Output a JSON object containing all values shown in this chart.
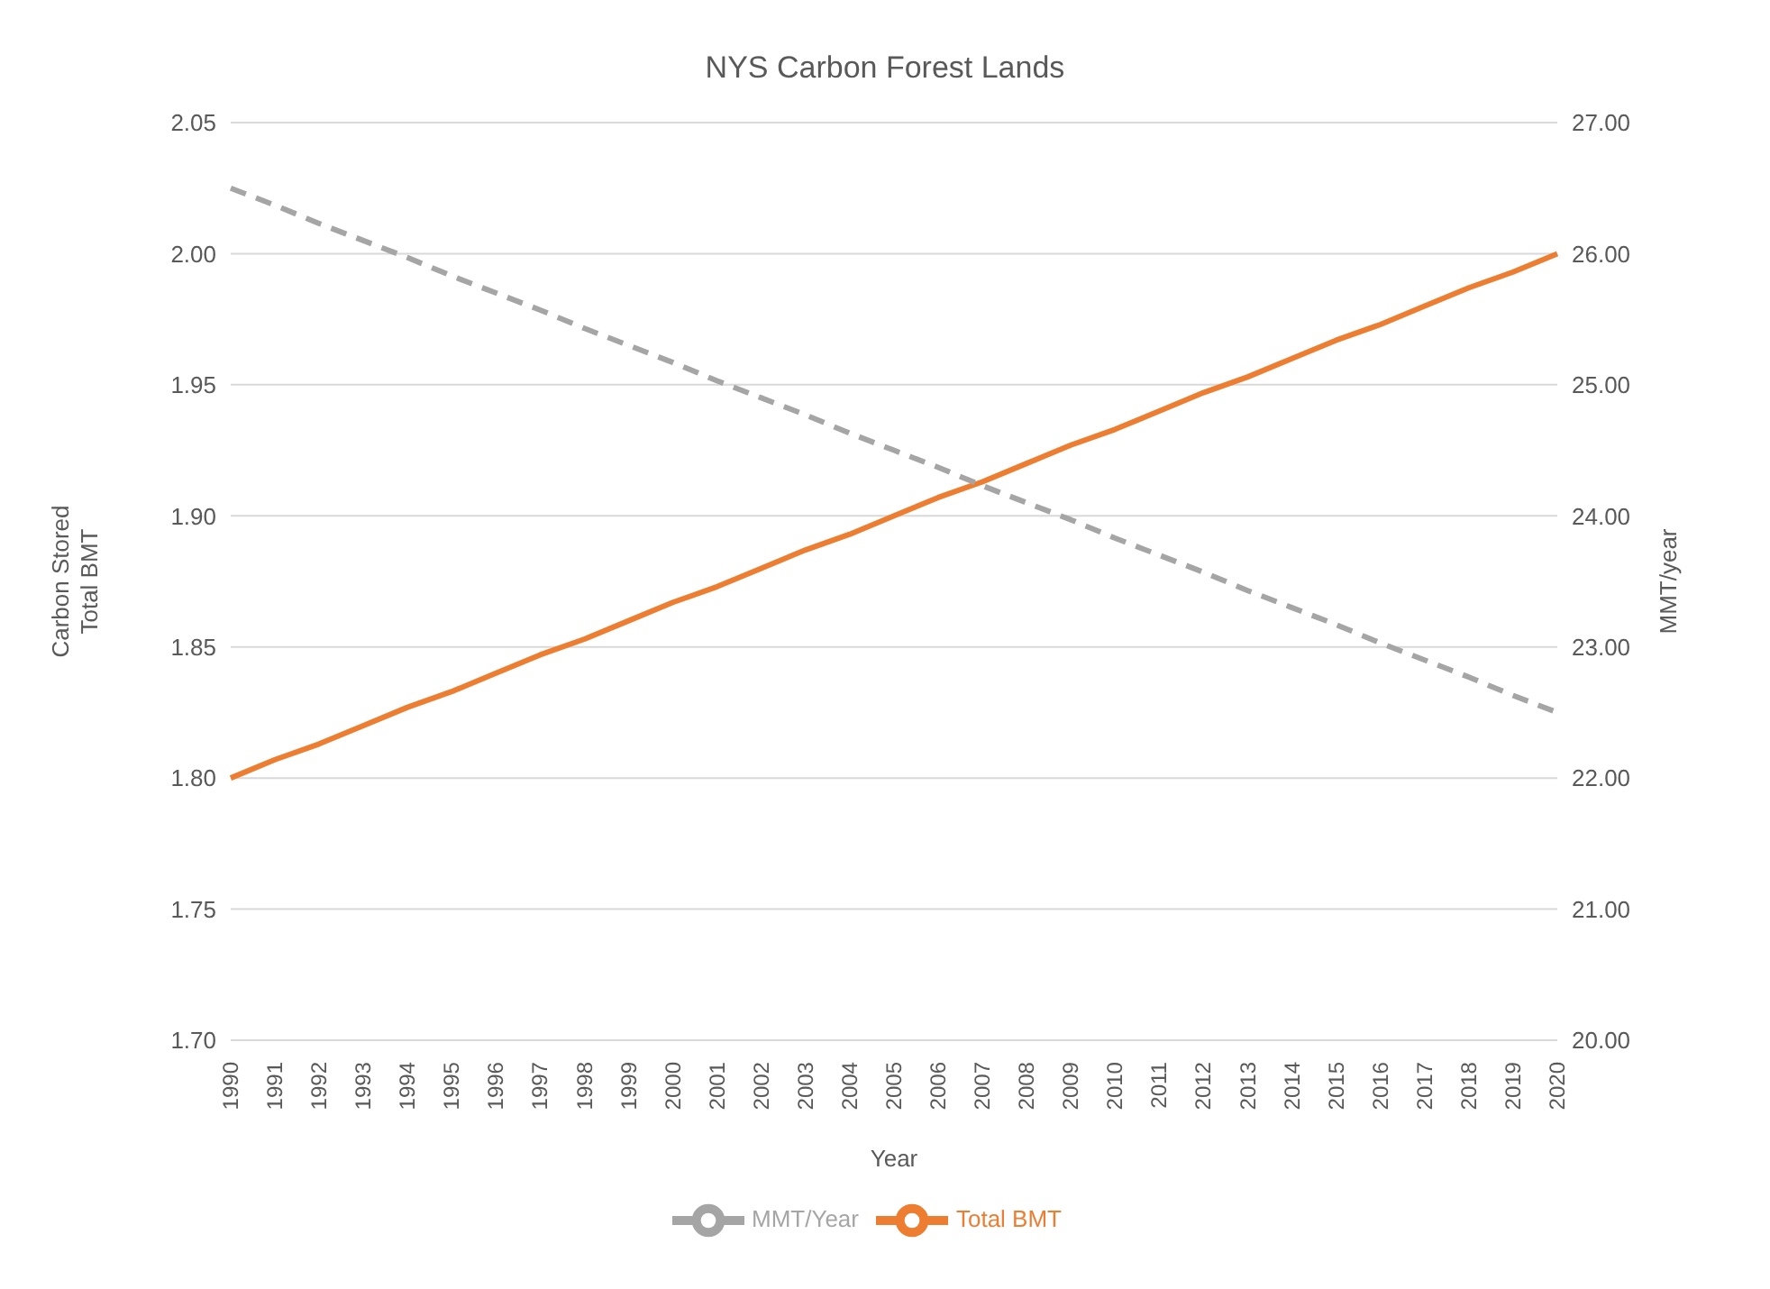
{
  "chart_data": {
    "type": "line",
    "title": "NYS Carbon Forest Lands",
    "xlabel": "Year",
    "ylabel": "Carbon Stored\nTotal BMT",
    "y2label": "MMT/year",
    "categories": [
      "1990",
      "1991",
      "1992",
      "1993",
      "1994",
      "1995",
      "1996",
      "1997",
      "1998",
      "1999",
      "2000",
      "2001",
      "2002",
      "2003",
      "2004",
      "2005",
      "2006",
      "2007",
      "2008",
      "2009",
      "2010",
      "2011",
      "2012",
      "2013",
      "2014",
      "2015",
      "2016",
      "2017",
      "2018",
      "2019",
      "2020"
    ],
    "series": [
      {
        "name": "Total BMT",
        "color": "#ed7d31",
        "line_style": "solid",
        "values": [
          1.8,
          1.807,
          1.813,
          1.82,
          1.827,
          1.833,
          1.84,
          1.847,
          1.853,
          1.86,
          1.867,
          1.873,
          1.88,
          1.887,
          1.893,
          1.9,
          1.907,
          1.913,
          1.92,
          1.927,
          1.933,
          1.94,
          1.947,
          1.953,
          1.96,
          1.967,
          1.973,
          1.98,
          1.987,
          1.993,
          2.0
        ]
      },
      {
        "name": "MMT/Year",
        "color": "#a5a5a5",
        "line_style": "dashed",
        "axis": "y2",
        "values": [
          26.5,
          26.37,
          26.23,
          26.1,
          25.97,
          25.83,
          25.7,
          25.57,
          25.43,
          25.3,
          25.17,
          25.03,
          24.9,
          24.77,
          24.63,
          24.5,
          24.37,
          24.23,
          24.1,
          23.97,
          23.83,
          23.7,
          23.57,
          23.43,
          23.3,
          23.17,
          23.03,
          22.9,
          22.77,
          22.63,
          22.5
        ]
      }
    ],
    "ylim": [
      1.7,
      2.05
    ],
    "yticks": [
      {
        "value": 1.7,
        "label": "1.70"
      },
      {
        "value": 1.75,
        "label": "1.75"
      },
      {
        "value": 1.8,
        "label": "1.80"
      },
      {
        "value": 1.85,
        "label": "1.85"
      },
      {
        "value": 1.9,
        "label": "1.90"
      },
      {
        "value": 1.95,
        "label": "1.95"
      },
      {
        "value": 2.0,
        "label": "2.00"
      },
      {
        "value": 2.05,
        "label": "2.05"
      }
    ],
    "y2lim": [
      20,
      27
    ],
    "y2ticks": [
      {
        "value": 20,
        "label": "20.00"
      },
      {
        "value": 21,
        "label": "21.00"
      },
      {
        "value": 22,
        "label": "22.00"
      },
      {
        "value": 23,
        "label": "23.00"
      },
      {
        "value": 24,
        "label": "24.00"
      },
      {
        "value": 25,
        "label": "25.00"
      },
      {
        "value": 26,
        "label": "26.00"
      },
      {
        "value": 27,
        "label": "27.00"
      }
    ],
    "grid": "y",
    "legend": "bottom",
    "marker": "none"
  }
}
